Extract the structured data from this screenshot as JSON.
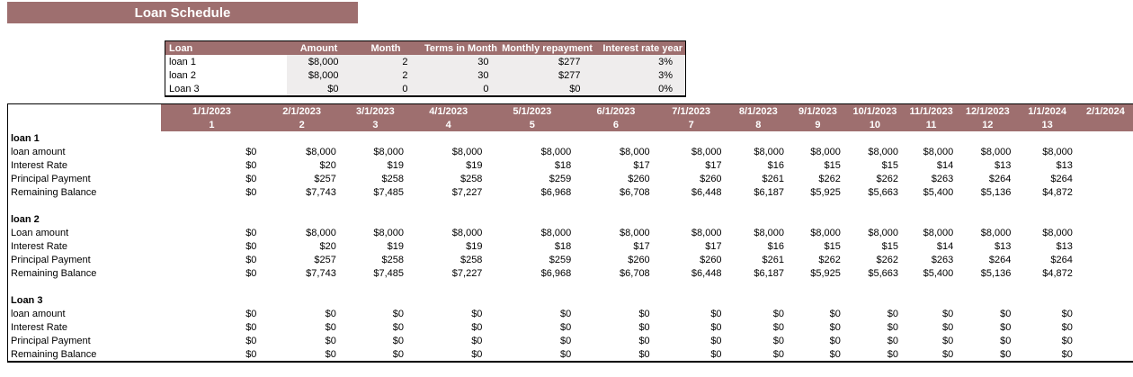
{
  "title": "Loan Schedule",
  "colors": {
    "header_bg": "#9E6F6F",
    "shaded_cell_bg": "#EFEDED",
    "header_text": "#FFFFFF",
    "border": "#000000"
  },
  "summary": {
    "headers": [
      "Loan",
      "Amount",
      "Month",
      "Terms in Month",
      "Monthly repayment",
      "Interest rate year"
    ],
    "rows": [
      {
        "loan": "loan 1",
        "amount": "$8,000",
        "month": "2",
        "terms": "30",
        "repayment": "$277",
        "rate": "3%"
      },
      {
        "loan": "loan 2",
        "amount": "$8,000",
        "month": "2",
        "terms": "30",
        "repayment": "$277",
        "rate": "3%"
      },
      {
        "loan": "Loan 3",
        "amount": "$0",
        "month": "0",
        "terms": "0",
        "repayment": "$0",
        "rate": "0%"
      }
    ]
  },
  "schedule": {
    "dates": [
      "1/1/2023",
      "2/1/2023",
      "3/1/2023",
      "4/1/2023",
      "5/1/2023",
      "6/1/2023",
      "7/1/2023",
      "8/1/2023",
      "9/1/2023",
      "10/1/2023",
      "11/1/2023",
      "12/1/2023",
      "1/1/2024",
      "2/1/2024"
    ],
    "periods": [
      "1",
      "2",
      "3",
      "4",
      "5",
      "6",
      "7",
      "8",
      "9",
      "10",
      "11",
      "12",
      "13",
      ""
    ],
    "sections": [
      {
        "name": "loan 1",
        "rows": [
          {
            "label": "loan amount",
            "values": [
              "$0",
              "$8,000",
              "$8,000",
              "$8,000",
              "$8,000",
              "$8,000",
              "$8,000",
              "$8,000",
              "$8,000",
              "$8,000",
              "$8,000",
              "$8,000",
              "$8,000",
              ""
            ]
          },
          {
            "label": "Interest Rate",
            "values": [
              "$0",
              "$20",
              "$19",
              "$19",
              "$18",
              "$17",
              "$17",
              "$16",
              "$15",
              "$15",
              "$14",
              "$13",
              "$13",
              ""
            ]
          },
          {
            "label": "Principal Payment",
            "values": [
              "$0",
              "$257",
              "$258",
              "$258",
              "$259",
              "$260",
              "$260",
              "$261",
              "$262",
              "$262",
              "$263",
              "$264",
              "$264",
              ""
            ]
          },
          {
            "label": "Remaining Balance",
            "values": [
              "$0",
              "$7,743",
              "$7,485",
              "$7,227",
              "$6,968",
              "$6,708",
              "$6,448",
              "$6,187",
              "$5,925",
              "$5,663",
              "$5,400",
              "$5,136",
              "$4,872",
              ""
            ]
          }
        ]
      },
      {
        "name": "loan 2",
        "rows": [
          {
            "label": "Loan amount",
            "values": [
              "$0",
              "$8,000",
              "$8,000",
              "$8,000",
              "$8,000",
              "$8,000",
              "$8,000",
              "$8,000",
              "$8,000",
              "$8,000",
              "$8,000",
              "$8,000",
              "$8,000",
              ""
            ]
          },
          {
            "label": "Interest Rate",
            "values": [
              "$0",
              "$20",
              "$19",
              "$19",
              "$18",
              "$17",
              "$17",
              "$16",
              "$15",
              "$15",
              "$14",
              "$13",
              "$13",
              ""
            ]
          },
          {
            "label": "Principal Payment",
            "values": [
              "$0",
              "$257",
              "$258",
              "$258",
              "$259",
              "$260",
              "$260",
              "$261",
              "$262",
              "$262",
              "$263",
              "$264",
              "$264",
              ""
            ]
          },
          {
            "label": "Remaining Balance",
            "values": [
              "$0",
              "$7,743",
              "$7,485",
              "$7,227",
              "$6,968",
              "$6,708",
              "$6,448",
              "$6,187",
              "$5,925",
              "$5,663",
              "$5,400",
              "$5,136",
              "$4,872",
              ""
            ]
          }
        ]
      },
      {
        "name": "Loan 3",
        "rows": [
          {
            "label": "loan amount",
            "values": [
              "$0",
              "$0",
              "$0",
              "$0",
              "$0",
              "$0",
              "$0",
              "$0",
              "$0",
              "$0",
              "$0",
              "$0",
              "$0",
              ""
            ]
          },
          {
            "label": "Interest Rate",
            "values": [
              "$0",
              "$0",
              "$0",
              "$0",
              "$0",
              "$0",
              "$0",
              "$0",
              "$0",
              "$0",
              "$0",
              "$0",
              "$0",
              ""
            ]
          },
          {
            "label": "Principal Payment",
            "values": [
              "$0",
              "$0",
              "$0",
              "$0",
              "$0",
              "$0",
              "$0",
              "$0",
              "$0",
              "$0",
              "$0",
              "$0",
              "$0",
              ""
            ]
          },
          {
            "label": "Remaining Balance",
            "values": [
              "$0",
              "$0",
              "$0",
              "$0",
              "$0",
              "$0",
              "$0",
              "$0",
              "$0",
              "$0",
              "$0",
              "$0",
              "$0",
              ""
            ]
          }
        ]
      }
    ]
  }
}
